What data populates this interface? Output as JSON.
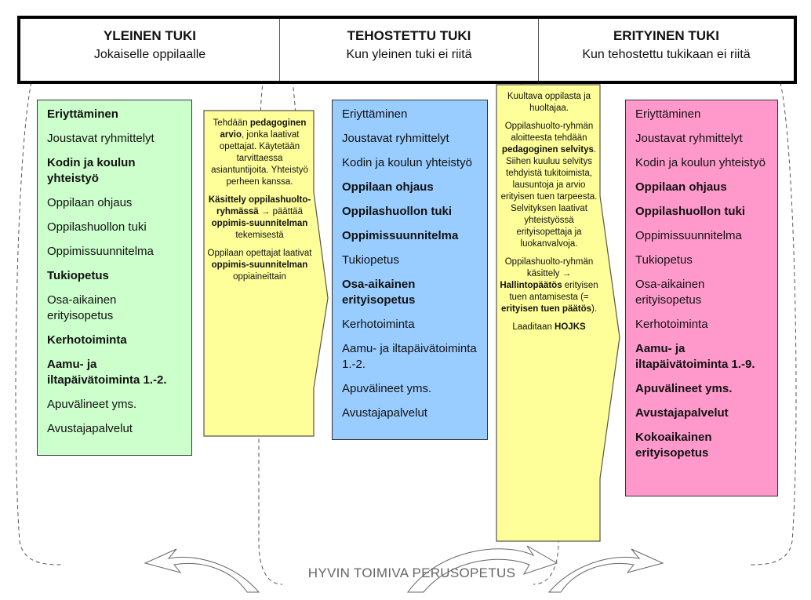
{
  "header": [
    {
      "title": "YLEINEN TUKI",
      "subtitle": "Jokaiselle oppilaalle"
    },
    {
      "title": "TEHOSTETTU TUKI",
      "subtitle": "Kun yleinen tuki ei riitä"
    },
    {
      "title": "ERITYINEN TUKI",
      "subtitle": "Kun tehostettu tukikaan ei riitä"
    }
  ],
  "colors": {
    "general": "#ccffcc",
    "intensified": "#99ccff",
    "special": "#ff99cc",
    "transition": "#ffff99"
  },
  "general_support": [
    {
      "label": "Eriyttäminen",
      "bold": true
    },
    {
      "label": "Joustavat ryhmittelyt",
      "bold": false
    },
    {
      "label": "Kodin ja koulun yhteistyö",
      "bold": true
    },
    {
      "label": "Oppilaan ohjaus",
      "bold": false
    },
    {
      "label": "Oppilashuollon tuki",
      "bold": false
    },
    {
      "label": "Oppimissuunnitelma",
      "bold": false
    },
    {
      "label": "Tukiopetus",
      "bold": true
    },
    {
      "label": "Osa-aikainen erityisopetus",
      "bold": false
    },
    {
      "label": "Kerhotoiminta",
      "bold": true
    },
    {
      "label": "Aamu- ja iltapäivätoiminta 1.-2.",
      "bold": true
    },
    {
      "label": "Apuvälineet yms.",
      "bold": false
    },
    {
      "label": "Avustajapalvelut",
      "bold": false
    }
  ],
  "intensified_support": [
    {
      "label": "Eriyttäminen",
      "bold": false
    },
    {
      "label": "Joustavat ryhmittelyt",
      "bold": false
    },
    {
      "label": "Kodin ja koulun yhteistyö",
      "bold": false
    },
    {
      "label": "Oppilaan ohjaus",
      "bold": true
    },
    {
      "label": "Oppilashuollon tuki",
      "bold": true
    },
    {
      "label": "Oppimissuunnitelma",
      "bold": true
    },
    {
      "label": "Tukiopetus",
      "bold": false
    },
    {
      "label": "Osa-aikainen erityisopetus",
      "bold": true
    },
    {
      "label": "Kerhotoiminta",
      "bold": false
    },
    {
      "label": "Aamu- ja iltapäivätoiminta 1.-2.",
      "bold": false
    },
    {
      "label": "Apuvälineet yms.",
      "bold": false
    },
    {
      "label": "Avustajapalvelut",
      "bold": false
    }
  ],
  "special_support": [
    {
      "label": "Eriyttäminen",
      "bold": false
    },
    {
      "label": "Joustavat ryhmittelyt",
      "bold": false
    },
    {
      "label": "Kodin ja koulun yhteistyö",
      "bold": false
    },
    {
      "label": "Oppilaan ohjaus",
      "bold": true
    },
    {
      "label": "Oppilashuollon tuki",
      "bold": true
    },
    {
      "label": "Oppimissuunnitelma",
      "bold": false
    },
    {
      "label": "Tukiopetus",
      "bold": false
    },
    {
      "label": "Osa-aikainen erityisopetus",
      "bold": false
    },
    {
      "label": "Kerhotoiminta",
      "bold": false
    },
    {
      "label": "Aamu- ja iltapäivätoiminta 1.-9.",
      "bold": true
    },
    {
      "label": "Apuvälineet yms.",
      "bold": true
    },
    {
      "label": "Avustajapalvelut",
      "bold": true
    },
    {
      "label": "Kokoaikainen erityisopetus",
      "bold": true
    }
  ],
  "transition_1": [
    [
      {
        "t": "Tehdään ",
        "b": false
      },
      {
        "t": "pedagoginen arvio",
        "b": true
      },
      {
        "t": ", jonka laativat opettajat. Käytetään tarvittaessa asiantuntijoita. Yhteistyö perheen kanssa.",
        "b": false
      }
    ],
    [
      {
        "t": "Käsittely oppilashuolto-ryhmässä →",
        "b": true
      },
      {
        "t": " päättää ",
        "b": false
      },
      {
        "t": "oppimis-suunnitelman",
        "b": true
      },
      {
        "t": " tekemisestä",
        "b": false
      }
    ],
    [
      {
        "t": "Oppilaan opettajat laativat ",
        "b": false
      },
      {
        "t": "oppimis-suunnitelman",
        "b": true
      },
      {
        "t": " oppiaineittain",
        "b": false
      }
    ]
  ],
  "transition_2": [
    [
      {
        "t": "Kuultava oppilasta ja huoltajaa.",
        "b": false
      }
    ],
    [
      {
        "t": "Oppilashuolto-ryhmän aloitteesta tehdään ",
        "b": false
      },
      {
        "t": "pedagoginen selvitys",
        "b": true
      },
      {
        "t": ". Siihen kuuluu selvitys tehdyistä tukitoimista, lausuntoja ja arvio erityisen tuen tarpeesta. Selvityksen laativat yhteistyössä erityisopettaja ja luokanvalvoja.",
        "b": false
      }
    ],
    [
      {
        "t": "Oppilashuolto-ryhmän käsittely → ",
        "b": false
      },
      {
        "t": "Hallintopäätös",
        "b": true
      },
      {
        "t": " erityisen tuen antamisesta (= ",
        "b": false
      },
      {
        "t": "erityisen tuen päätös",
        "b": true
      },
      {
        "t": ").",
        "b": false
      }
    ],
    [
      {
        "t": "Laaditaan ",
        "b": false
      },
      {
        "t": "HOJKS",
        "b": true
      }
    ]
  ],
  "footer": "HYVIN TOIMIVA PERUSOPETUS"
}
